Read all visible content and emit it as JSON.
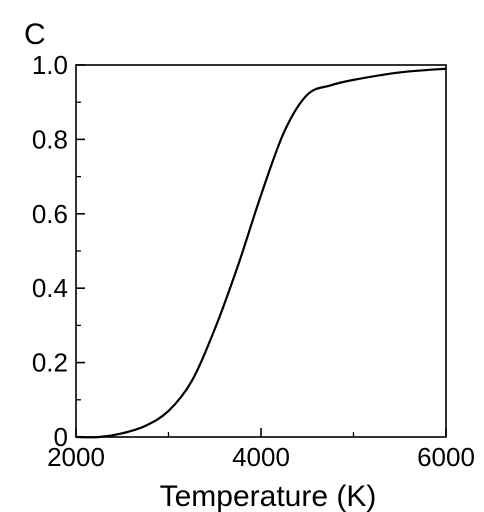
{
  "chart_data": {
    "type": "line",
    "panel_label": "C",
    "title": "",
    "xlabel": "Temperature (K)",
    "ylabel": "",
    "xlim": [
      2000,
      6000
    ],
    "ylim": [
      0,
      1.0
    ],
    "x_ticks": [
      2000,
      4000,
      6000
    ],
    "x_tick_labels": [
      "2000",
      "4000",
      "6000"
    ],
    "y_ticks": [
      0,
      0.2,
      0.4,
      0.6,
      0.8,
      1.0
    ],
    "y_tick_labels": [
      "0",
      "0.2",
      "0.4",
      "0.6",
      "0.8",
      "1.0"
    ],
    "grid": false,
    "legend": "none",
    "series": [
      {
        "color": "#000000",
        "x": [
          2000,
          2250,
          2500,
          2750,
          3000,
          3250,
          3500,
          3750,
          4000,
          4250,
          4500,
          4750,
          5000,
          5500,
          6000
        ],
        "y": [
          0.0,
          0.0,
          0.01,
          0.03,
          0.07,
          0.15,
          0.29,
          0.46,
          0.65,
          0.82,
          0.92,
          0.945,
          0.96,
          0.98,
          0.99
        ]
      }
    ]
  }
}
